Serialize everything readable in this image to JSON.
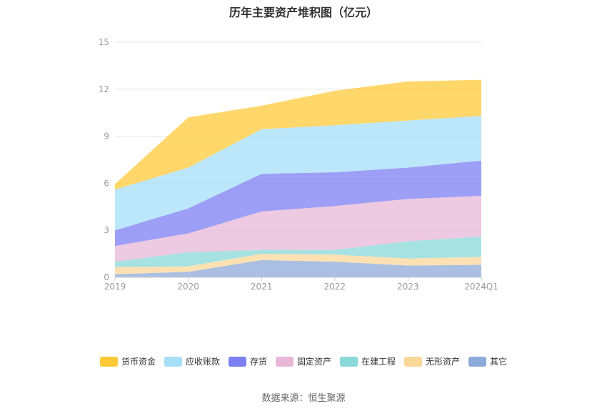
{
  "chart_data": {
    "type": "area",
    "title": "历年主要资产堆积图（亿元）",
    "categories": [
      "2019",
      "2020",
      "2021",
      "2022",
      "2023",
      "2024Q1"
    ],
    "ylim": [
      0,
      15
    ],
    "yticks": [
      0,
      3,
      6,
      9,
      12,
      15
    ],
    "stacked": true,
    "grid": true,
    "legend_position": "bottom",
    "series": [
      {
        "name": "其它",
        "color": "#8eaad8",
        "values": [
          0.2,
          0.35,
          1.1,
          1.0,
          0.75,
          0.8
        ]
      },
      {
        "name": "无形资产",
        "color": "#fcd79a",
        "values": [
          0.45,
          0.35,
          0.4,
          0.45,
          0.45,
          0.5
        ]
      },
      {
        "name": "在建工程",
        "color": "#8ad8d8",
        "values": [
          0.35,
          0.9,
          0.25,
          0.3,
          1.1,
          1.3
        ]
      },
      {
        "name": "固定资产",
        "color": "#e8b7d8",
        "values": [
          1.0,
          1.2,
          2.45,
          2.8,
          2.7,
          2.6
        ]
      },
      {
        "name": "存货",
        "color": "#7b7ff2",
        "values": [
          1.0,
          1.6,
          2.4,
          2.15,
          2.0,
          2.25
        ]
      },
      {
        "name": "应收账款",
        "color": "#a6dff8",
        "values": [
          2.6,
          2.6,
          2.85,
          3.0,
          3.0,
          2.85
        ]
      },
      {
        "name": "货币资金",
        "color": "#ffc938",
        "values": [
          0.35,
          3.2,
          1.5,
          2.2,
          2.5,
          2.3
        ]
      }
    ],
    "legend_order": [
      "货币资金",
      "应收账款",
      "存货",
      "固定资产",
      "在建工程",
      "无形资产",
      "其它"
    ]
  },
  "source": "数据来源：恒生聚源"
}
